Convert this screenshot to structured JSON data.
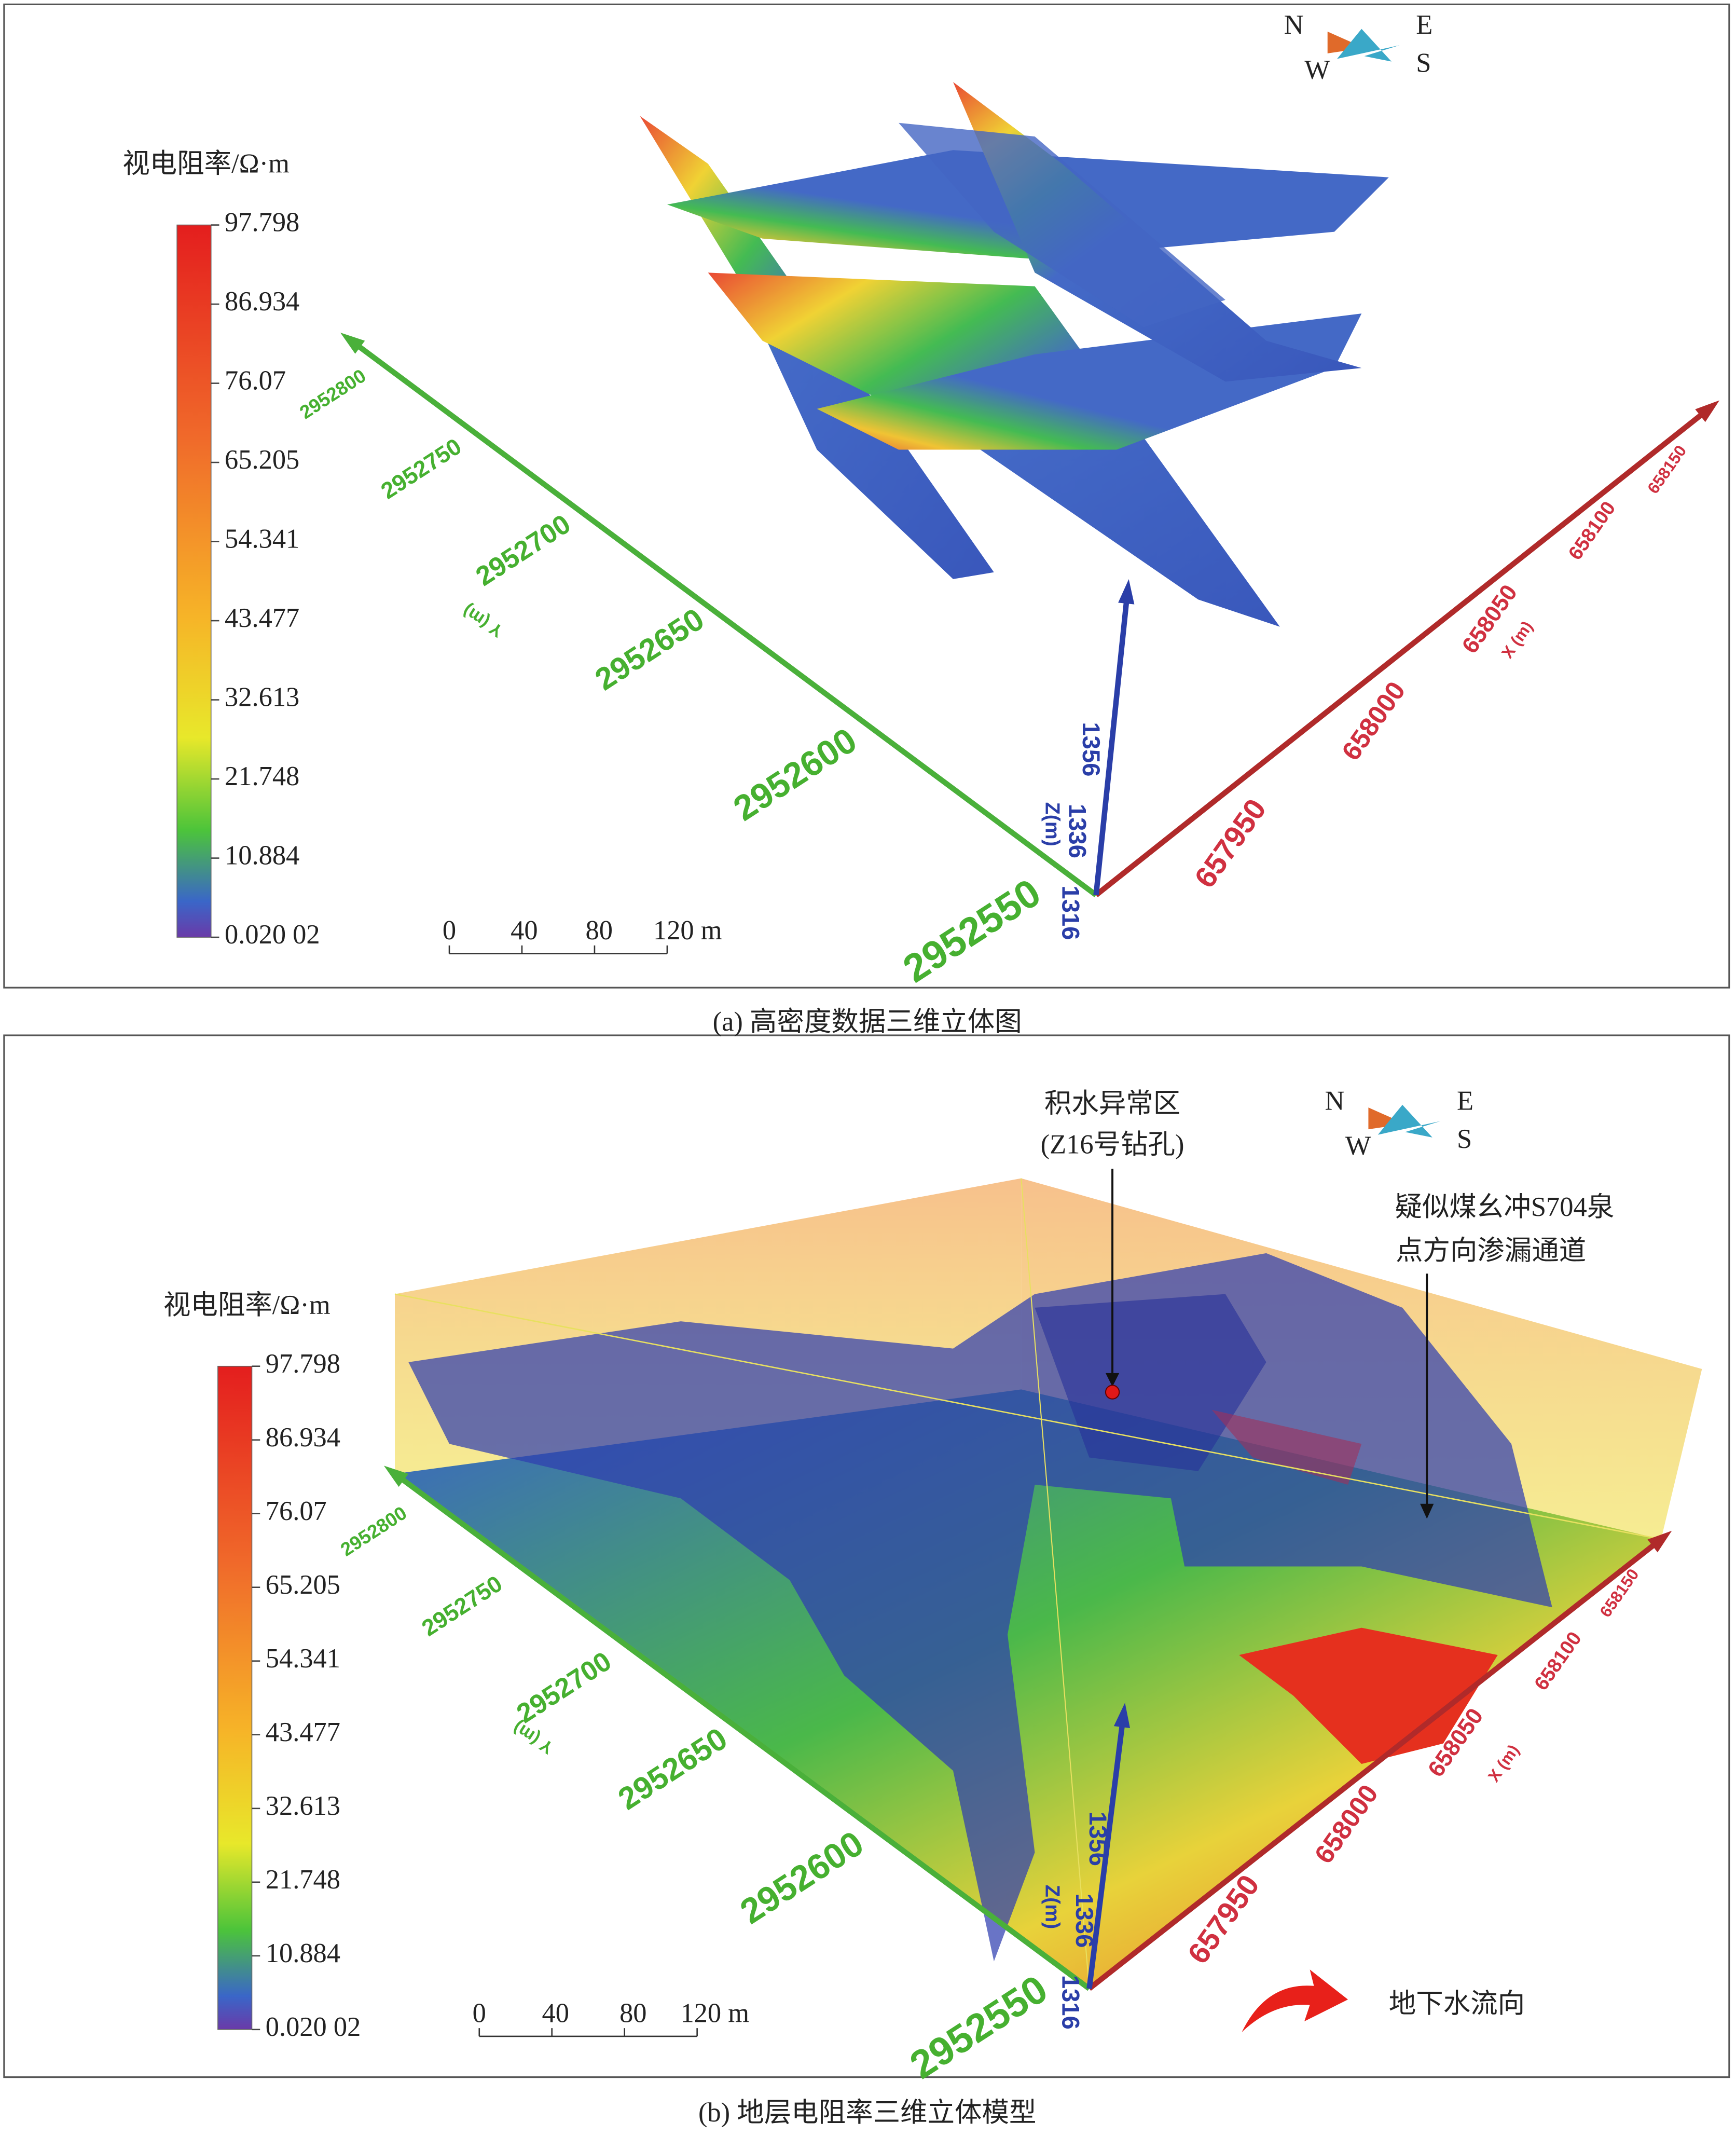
{
  "panels": [
    {
      "caption": "(a) 高密度数据三维立体图",
      "colorbar": {
        "title": "视电阻率/Ω·m",
        "ticks": [
          "97.798",
          "86.934",
          "76.07",
          "65.205",
          "54.341",
          "43.477",
          "32.613",
          "21.748",
          "10.884",
          "0.020 02"
        ]
      },
      "scale_bar": [
        "0",
        "40",
        "80",
        "120 m"
      ],
      "compass": {
        "n": "N",
        "e": "E",
        "w": "W",
        "s": "S"
      },
      "y_axis": {
        "label": "Y (m)",
        "ticks": [
          "2952800",
          "2952750",
          "2952700",
          "2952650",
          "2952600",
          "2952550"
        ]
      },
      "x_axis": {
        "label": "X (m)",
        "ticks": [
          "657950",
          "658000",
          "658050",
          "658100",
          "658150"
        ]
      },
      "z_axis": {
        "label": "Z(m)",
        "ticks": [
          "1356",
          "1336",
          "1316"
        ]
      }
    },
    {
      "caption": "(b) 地层电阻率三维立体模型",
      "colorbar": {
        "title": "视电阻率/Ω·m",
        "ticks": [
          "97.798",
          "86.934",
          "76.07",
          "65.205",
          "54.341",
          "43.477",
          "32.613",
          "21.748",
          "10.884",
          "0.020 02"
        ]
      },
      "scale_bar": [
        "0",
        "40",
        "80",
        "120 m"
      ],
      "compass": {
        "n": "N",
        "e": "E",
        "w": "W",
        "s": "S"
      },
      "y_axis": {
        "label": "Y (m)",
        "ticks": [
          "2952800",
          "2952750",
          "2952700",
          "2952650",
          "2952600",
          "2952550"
        ]
      },
      "x_axis": {
        "label": "X (m)",
        "ticks": [
          "657950",
          "658000",
          "658050",
          "658100",
          "658150"
        ]
      },
      "z_axis": {
        "label": "Z(m)",
        "ticks": [
          "1356",
          "1336",
          "1316"
        ]
      },
      "annotations": {
        "anomaly": [
          "积水异常区",
          "(Z16号钻孔)"
        ],
        "leak": [
          "疑似煤幺冲S704泉",
          "点方向渗漏通道"
        ],
        "flow": "地下水流向"
      }
    }
  ]
}
